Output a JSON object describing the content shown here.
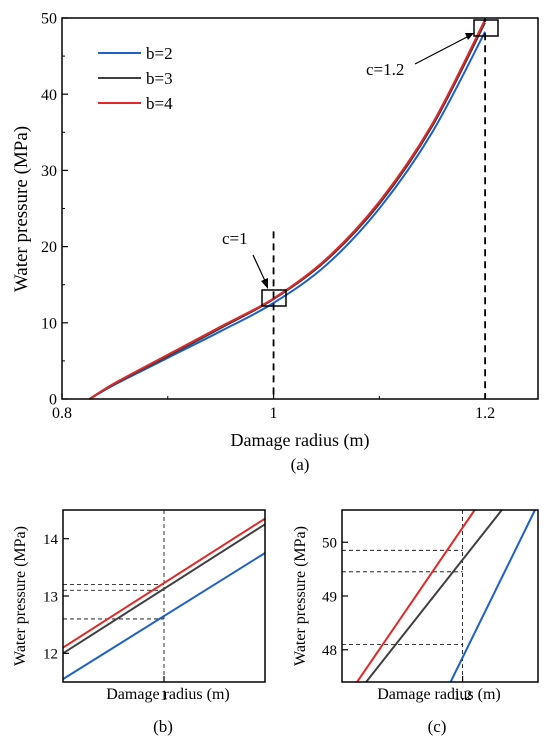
{
  "chart_data": [
    {
      "type": "line",
      "panel_label": "(a)",
      "xlabel": "Damage radius (m)",
      "ylabel": "Water pressure (MPa)",
      "xlim": [
        0.8,
        1.25
      ],
      "ylim": [
        0,
        50
      ],
      "x_ticks": [
        0.8,
        1.0,
        1.2
      ],
      "x_tick_labels": [
        "0.8",
        "1",
        "1.2"
      ],
      "y_ticks": [
        0,
        10,
        20,
        30,
        40,
        50
      ],
      "y_tick_labels": [
        "0",
        "10",
        "20",
        "30",
        "40",
        "50"
      ],
      "legend_position": "top-left",
      "series": [
        {
          "name": "b=2",
          "color": "#1f5fc8",
          "x": [
            0.826,
            0.85,
            0.9,
            0.95,
            1.0,
            1.05,
            1.1,
            1.15,
            1.2
          ],
          "y": [
            0,
            1.9,
            5.4,
            8.9,
            12.6,
            17.6,
            25.0,
            35.0,
            48.2
          ]
        },
        {
          "name": "b=3",
          "color": "#404040",
          "x": [
            0.826,
            0.85,
            0.9,
            0.95,
            1.0,
            1.05,
            1.1,
            1.15,
            1.2
          ],
          "y": [
            0,
            2.0,
            5.6,
            9.3,
            13.1,
            18.2,
            25.6,
            35.8,
            49.4
          ]
        },
        {
          "name": "b=4",
          "color": "#e02a2a",
          "x": [
            0.826,
            0.85,
            0.9,
            0.95,
            1.0,
            1.05,
            1.1,
            1.15,
            1.2
          ],
          "y": [
            0,
            2.1,
            5.8,
            9.5,
            13.2,
            18.4,
            25.9,
            36.1,
            49.8
          ]
        }
      ],
      "annotations": [
        {
          "text": "c=1",
          "x": 1.0,
          "y": 13.1
        },
        {
          "text": "c=1.2",
          "x": 1.2,
          "y": 48.7
        }
      ]
    },
    {
      "type": "line",
      "panel_label": "(b)",
      "xlabel": "Damage radius (m)",
      "ylabel": "Water pressure (MPa)",
      "xlim": [
        0.98,
        1.02
      ],
      "ylim": [
        11.5,
        14.5
      ],
      "x_ticks": [
        1.0
      ],
      "x_tick_labels": [
        "1"
      ],
      "y_ticks": [
        12,
        13,
        14
      ],
      "y_tick_labels": [
        "12",
        "13",
        "14"
      ],
      "reference_values": [
        12.6,
        13.1,
        13.2
      ],
      "series": [
        {
          "name": "b=2",
          "color": "#1f5fc8",
          "x": [
            0.98,
            1.02
          ],
          "y": [
            11.55,
            13.75
          ]
        },
        {
          "name": "b=3",
          "color": "#404040",
          "x": [
            0.98,
            1.02
          ],
          "y": [
            12.0,
            14.25
          ]
        },
        {
          "name": "b=4",
          "color": "#e02a2a",
          "x": [
            0.98,
            1.02
          ],
          "y": [
            12.1,
            14.35
          ]
        }
      ]
    },
    {
      "type": "line",
      "panel_label": "(c)",
      "xlabel": "Damage radius (m)",
      "ylabel": "Water pressure (MPa)",
      "xlim": [
        1.196,
        1.2025
      ],
      "ylim": [
        47.4,
        50.6
      ],
      "x_ticks": [
        1.2
      ],
      "x_tick_labels": [
        "1.2"
      ],
      "y_ticks": [
        48,
        49,
        50
      ],
      "y_tick_labels": [
        "48",
        "49",
        "50"
      ],
      "reference_values": [
        48.1,
        49.45,
        49.85
      ],
      "series": [
        {
          "name": "b=2",
          "color": "#1f5fc8",
          "x": [
            1.1996,
            1.2024
          ],
          "y": [
            47.4,
            50.6
          ]
        },
        {
          "name": "b=3",
          "color": "#404040",
          "x": [
            1.1968,
            1.2013
          ],
          "y": [
            47.4,
            50.6
          ]
        },
        {
          "name": "b=4",
          "color": "#e02a2a",
          "x": [
            1.1965,
            1.2004
          ],
          "y": [
            47.4,
            50.6
          ]
        }
      ]
    }
  ]
}
